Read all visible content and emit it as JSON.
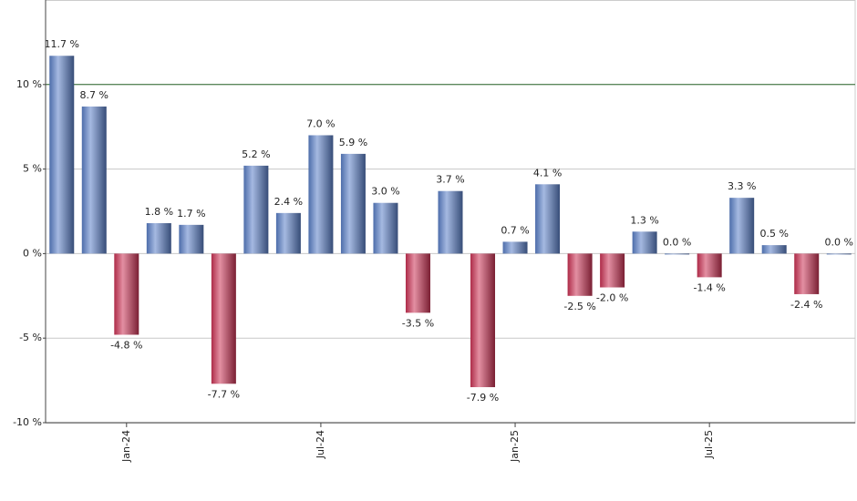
{
  "chart_data": {
    "type": "bar",
    "categories": [
      null,
      null,
      "Jan-24",
      null,
      null,
      null,
      null,
      null,
      "Jul-24",
      null,
      null,
      null,
      null,
      null,
      "Jan-25",
      null,
      null,
      null,
      null,
      null,
      "Jul-25",
      null,
      null,
      null,
      null
    ],
    "values": [
      11.7,
      8.7,
      -4.8,
      1.8,
      1.7,
      -7.7,
      5.2,
      2.4,
      7.0,
      5.9,
      3.0,
      -3.5,
      3.7,
      -7.9,
      0.7,
      4.1,
      -2.5,
      -2.0,
      1.3,
      0.0,
      -1.4,
      3.3,
      0.5,
      -2.4,
      0.0
    ],
    "value_labels": [
      "11.7 %",
      "8.7 %",
      "-4.8 %",
      "1.8 %",
      "1.7 %",
      "-7.7 %",
      "5.2 %",
      "2.4 %",
      "7.0 %",
      "5.9 %",
      "3.0 %",
      "-3.5 %",
      "3.7 %",
      "-7.9 %",
      "0.7 %",
      "4.1 %",
      "-2.5 %",
      "-2.0 %",
      "1.3 %",
      "0.0 %",
      "-1.4 %",
      "3.3 %",
      "0.5 %",
      "-2.4 %",
      "0.0 %"
    ],
    "positive_color": "#5b80c8",
    "negative_color": "#cc3355",
    "ylim": [
      -10,
      15
    ],
    "yticks": [
      {
        "value": -10,
        "label": "-10 %"
      },
      {
        "value": -5,
        "label": "-5 %"
      },
      {
        "value": 0,
        "label": "0 %"
      },
      {
        "value": 5,
        "label": "5 %"
      },
      {
        "value": 10,
        "label": "10 %"
      }
    ],
    "grid": true,
    "reference_line": {
      "value": 10,
      "color": "#2e6b2e"
    }
  }
}
